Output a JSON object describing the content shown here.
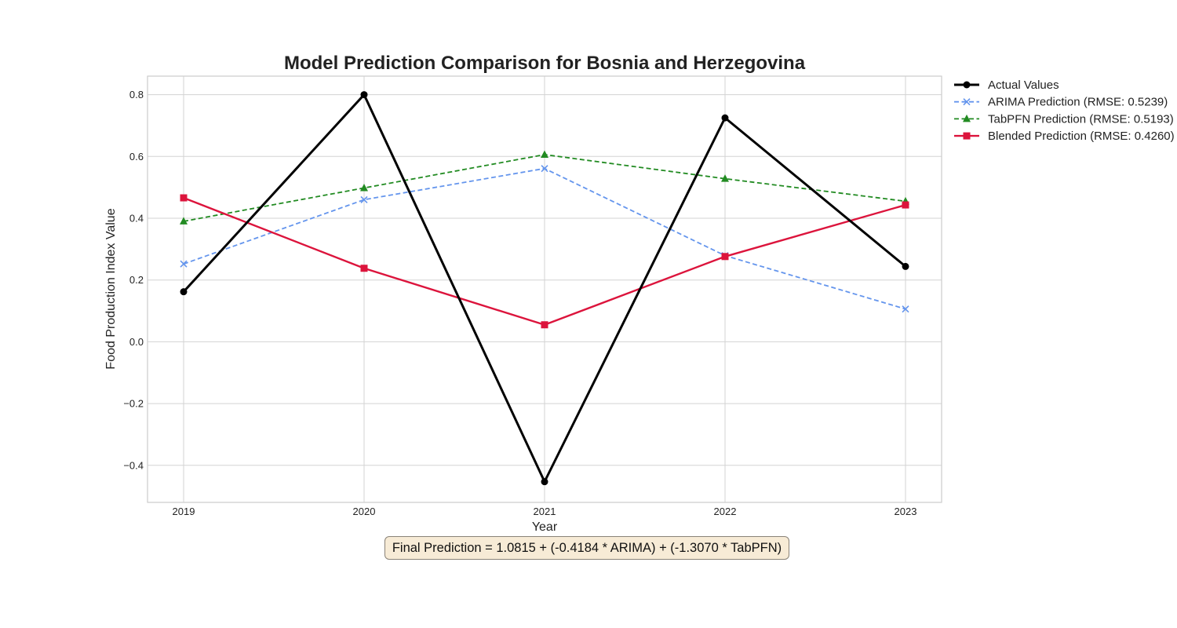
{
  "chart_data": {
    "type": "line",
    "title": "Model Prediction Comparison for Bosnia and Herzegovina",
    "xlabel": "Year",
    "ylabel": "Food Production Index Value",
    "x": [
      2019,
      2020,
      2021,
      2022,
      2023
    ],
    "xlim": [
      2018.8,
      2023.2
    ],
    "ylim": [
      -0.52,
      0.86
    ],
    "yticks": [
      -0.4,
      -0.2,
      0.0,
      0.2,
      0.4,
      0.6,
      0.8
    ],
    "ytick_labels": [
      "−0.4",
      "−0.2",
      "0.0",
      "0.2",
      "0.4",
      "0.6",
      "0.8"
    ],
    "grid": true,
    "legend_position": "outside-top-right",
    "series": [
      {
        "name": "Actual Values",
        "values": [
          0.162,
          0.8,
          -0.453,
          0.725,
          0.244
        ],
        "color": "#000000",
        "dash": "solid",
        "marker": "circle",
        "width": 3
      },
      {
        "name": "ARIMA Prediction (RMSE: 0.5239)",
        "values": [
          0.252,
          0.46,
          0.561,
          0.279,
          0.106
        ],
        "color": "#6495ed",
        "dash": "dashed",
        "marker": "x",
        "width": 1.8
      },
      {
        "name": "TabPFN Prediction (RMSE: 0.5193)",
        "values": [
          0.39,
          0.498,
          0.606,
          0.528,
          0.455
        ],
        "color": "#228b22",
        "dash": "dashed",
        "marker": "triangle",
        "width": 1.8
      },
      {
        "name": "Blended Prediction (RMSE: 0.4260)",
        "values": [
          0.466,
          0.238,
          0.055,
          0.276,
          0.443
        ],
        "color": "#dc143c",
        "dash": "solid",
        "marker": "square",
        "width": 2.4
      }
    ],
    "annotation": "Final Prediction = 1.0815 + (-0.4184 * ARIMA) + (-1.3070 * TabPFN)"
  }
}
